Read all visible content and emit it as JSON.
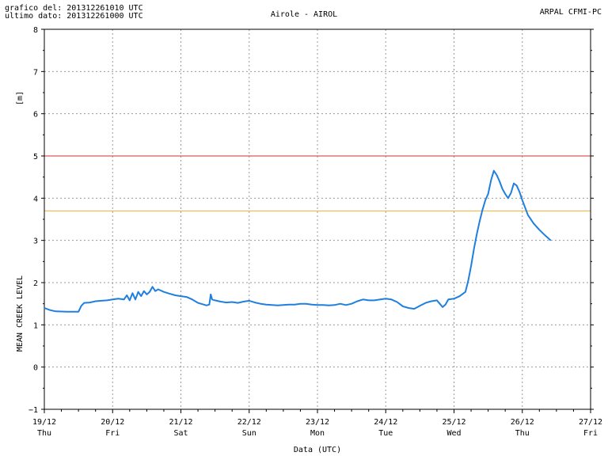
{
  "header": {
    "line1": "grafico del: 201312261010 UTC",
    "line2": "ultimo dato: 201312261000 UTC",
    "title": "Airole - AIROL",
    "source": "ARPAL CFMI-PC"
  },
  "chart_data": {
    "type": "line",
    "title": "Airole - AIROL",
    "xlabel": "Data (UTC)",
    "ylabel_top": "[m]",
    "ylabel": "MEAN CREEK LEVEL",
    "ylim": [
      -1,
      8
    ],
    "yticks": [
      -1,
      0,
      1,
      2,
      3,
      4,
      5,
      6,
      7,
      8
    ],
    "xlim": [
      "2013-12-19T00:00",
      "2013-12-27T00:00"
    ],
    "xticks": [
      {
        "date": "19/12",
        "day": "Thu"
      },
      {
        "date": "20/12",
        "day": "Fri"
      },
      {
        "date": "21/12",
        "day": "Sat"
      },
      {
        "date": "22/12",
        "day": "Sun"
      },
      {
        "date": "23/12",
        "day": "Mon"
      },
      {
        "date": "24/12",
        "day": "Tue"
      },
      {
        "date": "25/12",
        "day": "Wed"
      },
      {
        "date": "26/12",
        "day": "Thu"
      },
      {
        "date": "27/12",
        "day": "Fri"
      }
    ],
    "grid": true,
    "thresholds": [
      {
        "value": 5.0,
        "color": "#d03030"
      },
      {
        "value": 3.7,
        "color": "#f0b030"
      }
    ],
    "series": [
      {
        "color": "#1f7fe0",
        "points": [
          [
            "2013-12-19T00:00",
            1.4
          ],
          [
            "2013-12-19T02:00",
            1.35
          ],
          [
            "2013-12-19T04:00",
            1.32
          ],
          [
            "2013-12-19T08:00",
            1.31
          ],
          [
            "2013-12-19T10:00",
            1.31
          ],
          [
            "2013-12-19T12:00",
            1.31
          ],
          [
            "2013-12-19T13:00",
            1.45
          ],
          [
            "2013-12-19T14:00",
            1.52
          ],
          [
            "2013-12-19T16:00",
            1.53
          ],
          [
            "2013-12-19T18:00",
            1.56
          ],
          [
            "2013-12-19T20:00",
            1.57
          ],
          [
            "2013-12-19T22:00",
            1.58
          ],
          [
            "2013-12-20T00:00",
            1.6
          ],
          [
            "2013-12-20T02:00",
            1.62
          ],
          [
            "2013-12-20T04:00",
            1.6
          ],
          [
            "2013-12-20T05:00",
            1.7
          ],
          [
            "2013-12-20T06:00",
            1.58
          ],
          [
            "2013-12-20T07:00",
            1.75
          ],
          [
            "2013-12-20T08:00",
            1.6
          ],
          [
            "2013-12-20T09:00",
            1.78
          ],
          [
            "2013-12-20T10:00",
            1.68
          ],
          [
            "2013-12-20T11:00",
            1.8
          ],
          [
            "2013-12-20T12:00",
            1.72
          ],
          [
            "2013-12-20T13:00",
            1.78
          ],
          [
            "2013-12-20T14:00",
            1.9
          ],
          [
            "2013-12-20T15:00",
            1.8
          ],
          [
            "2013-12-20T16:00",
            1.84
          ],
          [
            "2013-12-20T18:00",
            1.78
          ],
          [
            "2013-12-20T20:00",
            1.74
          ],
          [
            "2013-12-20T22:00",
            1.7
          ],
          [
            "2013-12-21T00:00",
            1.68
          ],
          [
            "2013-12-21T02:00",
            1.66
          ],
          [
            "2013-12-21T04:00",
            1.6
          ],
          [
            "2013-12-21T06:00",
            1.52
          ],
          [
            "2013-12-21T08:00",
            1.48
          ],
          [
            "2013-12-21T09:00",
            1.46
          ],
          [
            "2013-12-21T10:00",
            1.48
          ],
          [
            "2013-12-21T10:30",
            1.72
          ],
          [
            "2013-12-21T11:00",
            1.6
          ],
          [
            "2013-12-21T12:00",
            1.58
          ],
          [
            "2013-12-21T14:00",
            1.55
          ],
          [
            "2013-12-21T16:00",
            1.53
          ],
          [
            "2013-12-21T18:00",
            1.54
          ],
          [
            "2013-12-21T20:00",
            1.52
          ],
          [
            "2013-12-21T22:00",
            1.55
          ],
          [
            "2013-12-22T00:00",
            1.57
          ],
          [
            "2013-12-22T02:00",
            1.53
          ],
          [
            "2013-12-22T04:00",
            1.5
          ],
          [
            "2013-12-22T06:00",
            1.48
          ],
          [
            "2013-12-22T08:00",
            1.47
          ],
          [
            "2013-12-22T10:00",
            1.46
          ],
          [
            "2013-12-22T12:00",
            1.47
          ],
          [
            "2013-12-22T14:00",
            1.48
          ],
          [
            "2013-12-22T16:00",
            1.48
          ],
          [
            "2013-12-22T18:00",
            1.5
          ],
          [
            "2013-12-22T20:00",
            1.5
          ],
          [
            "2013-12-22T22:00",
            1.48
          ],
          [
            "2013-12-23T00:00",
            1.47
          ],
          [
            "2013-12-23T02:00",
            1.47
          ],
          [
            "2013-12-23T04:00",
            1.46
          ],
          [
            "2013-12-23T06:00",
            1.47
          ],
          [
            "2013-12-23T08:00",
            1.5
          ],
          [
            "2013-12-23T10:00",
            1.47
          ],
          [
            "2013-12-23T12:00",
            1.5
          ],
          [
            "2013-12-23T14:00",
            1.56
          ],
          [
            "2013-12-23T16:00",
            1.6
          ],
          [
            "2013-12-23T18:00",
            1.58
          ],
          [
            "2013-12-23T20:00",
            1.58
          ],
          [
            "2013-12-23T22:00",
            1.6
          ],
          [
            "2013-12-24T00:00",
            1.62
          ],
          [
            "2013-12-24T02:00",
            1.6
          ],
          [
            "2013-12-24T04:00",
            1.54
          ],
          [
            "2013-12-24T06:00",
            1.44
          ],
          [
            "2013-12-24T08:00",
            1.4
          ],
          [
            "2013-12-24T10:00",
            1.38
          ],
          [
            "2013-12-24T12:00",
            1.45
          ],
          [
            "2013-12-24T14:00",
            1.52
          ],
          [
            "2013-12-24T16:00",
            1.56
          ],
          [
            "2013-12-24T18:00",
            1.58
          ],
          [
            "2013-12-24T19:00",
            1.5
          ],
          [
            "2013-12-24T20:00",
            1.42
          ],
          [
            "2013-12-24T21:00",
            1.48
          ],
          [
            "2013-12-24T22:00",
            1.6
          ],
          [
            "2013-12-25T00:00",
            1.62
          ],
          [
            "2013-12-25T02:00",
            1.68
          ],
          [
            "2013-12-25T04:00",
            1.78
          ],
          [
            "2013-12-25T05:00",
            2.05
          ],
          [
            "2013-12-25T06:00",
            2.4
          ],
          [
            "2013-12-25T07:00",
            2.8
          ],
          [
            "2013-12-25T08:00",
            3.15
          ],
          [
            "2013-12-25T09:00",
            3.45
          ],
          [
            "2013-12-25T10:00",
            3.72
          ],
          [
            "2013-12-25T11:00",
            3.95
          ],
          [
            "2013-12-25T12:00",
            4.1
          ],
          [
            "2013-12-25T13:00",
            4.42
          ],
          [
            "2013-12-25T14:00",
            4.65
          ],
          [
            "2013-12-25T15:00",
            4.55
          ],
          [
            "2013-12-25T16:00",
            4.4
          ],
          [
            "2013-12-25T17:00",
            4.22
          ],
          [
            "2013-12-25T18:00",
            4.1
          ],
          [
            "2013-12-25T19:00",
            4.0
          ],
          [
            "2013-12-25T20:00",
            4.12
          ],
          [
            "2013-12-25T21:00",
            4.35
          ],
          [
            "2013-12-25T22:00",
            4.3
          ],
          [
            "2013-12-25T23:00",
            4.15
          ],
          [
            "2013-12-26T00:00",
            3.95
          ],
          [
            "2013-12-26T02:00",
            3.6
          ],
          [
            "2013-12-26T04:00",
            3.4
          ],
          [
            "2013-12-26T06:00",
            3.25
          ],
          [
            "2013-12-26T08:00",
            3.12
          ],
          [
            "2013-12-26T10:00",
            3.0
          ]
        ]
      }
    ]
  }
}
